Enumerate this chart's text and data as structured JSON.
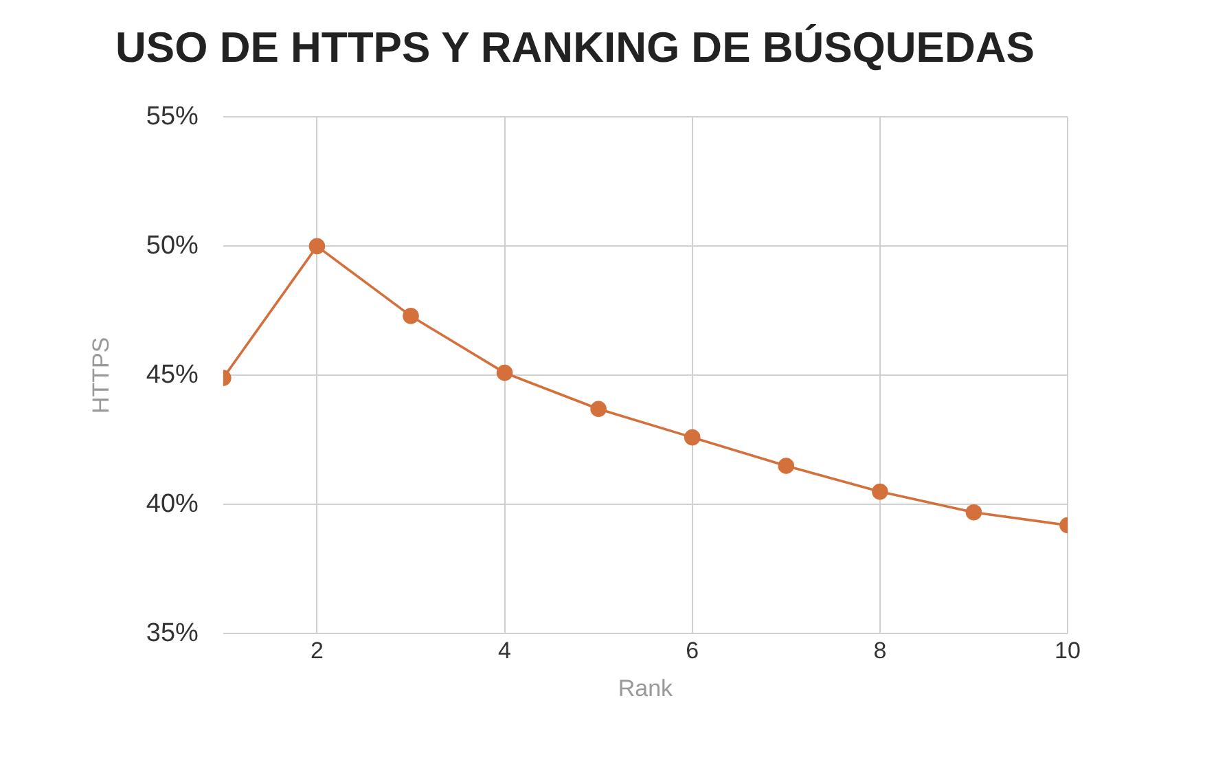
{
  "chart_data": {
    "type": "line",
    "title": "USO DE HTTPS Y RANKING DE BÚSQUEDAS",
    "xlabel": "Rank",
    "ylabel": "HTTPS",
    "x": [
      1,
      2,
      3,
      4,
      5,
      6,
      7,
      8,
      9,
      10
    ],
    "series": [
      {
        "color": "#d4703c",
        "values": [
          44.9,
          50.0,
          47.3,
          45.1,
          43.7,
          42.6,
          41.5,
          40.5,
          39.7,
          39.2
        ]
      }
    ],
    "xlim": [
      1,
      10
    ],
    "xticks": [
      2,
      4,
      6,
      8,
      10
    ],
    "ylim": [
      35,
      55
    ],
    "yticks": [
      {
        "value": 35,
        "label": "35%"
      },
      {
        "value": 40,
        "label": "40%"
      },
      {
        "value": 45,
        "label": "45%"
      },
      {
        "value": 50,
        "label": "50%"
      },
      {
        "value": 55,
        "label": "55%"
      }
    ],
    "grid": true,
    "legend": false,
    "marker": "circle",
    "line_style": "solid"
  }
}
